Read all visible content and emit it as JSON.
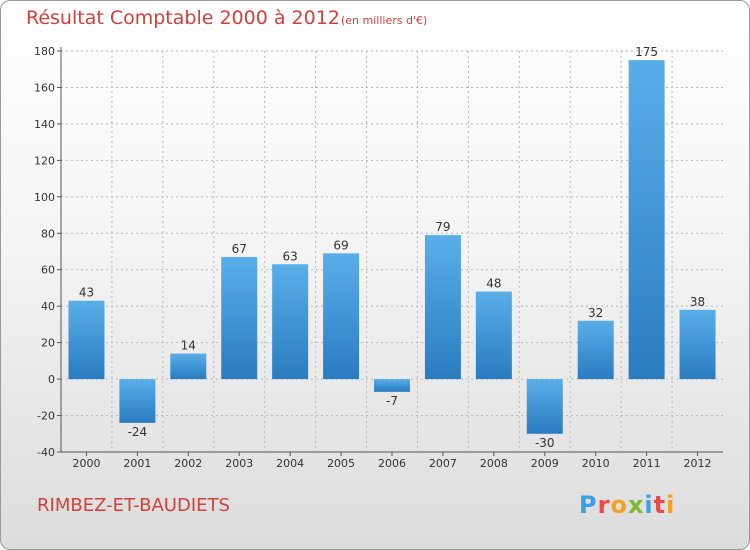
{
  "chart_data": {
    "type": "bar",
    "title": "Résultat Comptable 2000 à 2012",
    "subtitle": "(en milliers d'€)",
    "categories": [
      "2000",
      "2001",
      "2002",
      "2003",
      "2004",
      "2005",
      "2006",
      "2007",
      "2008",
      "2009",
      "2010",
      "2011",
      "2012"
    ],
    "values": [
      43,
      -24,
      14,
      67,
      63,
      69,
      -7,
      79,
      48,
      -30,
      32,
      175,
      38
    ],
    "ylim": [
      -40,
      180
    ],
    "yticks": [
      -40,
      -20,
      0,
      20,
      40,
      60,
      80,
      100,
      120,
      140,
      160,
      180
    ],
    "xlabel": "",
    "ylabel": "",
    "grid": true,
    "legend": "none"
  },
  "footer": {
    "commune": "RIMBEZ-ET-BAUDIETS",
    "logo_letters": [
      "P",
      "r",
      "o",
      "x",
      "i",
      "t",
      "i"
    ]
  },
  "colors": {
    "bar_light": "#5aaee8",
    "bar_dark": "#2a7cc0",
    "title": "#d43f3a",
    "grid": "#b8b8b8"
  }
}
